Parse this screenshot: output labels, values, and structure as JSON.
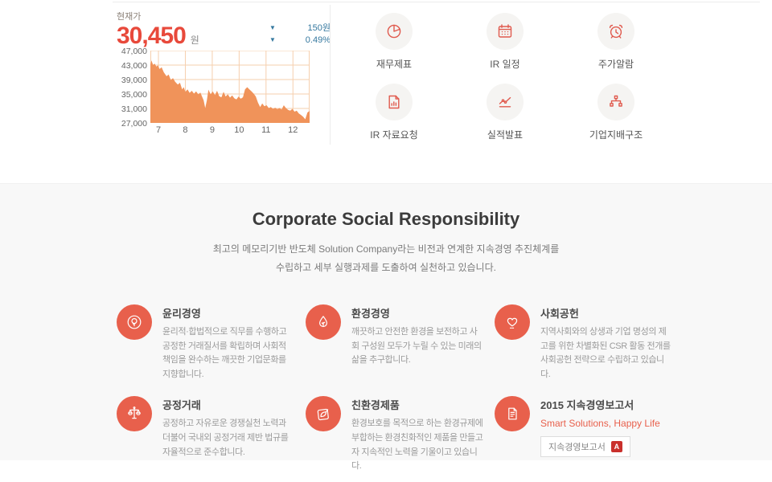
{
  "stock": {
    "label": "현재가",
    "price": "30,450",
    "currency": "원",
    "change_amount": "150원",
    "change_percent": "0.49%",
    "direction": "down",
    "down_triangle": "▼"
  },
  "chart_data": {
    "type": "area",
    "title": "",
    "xlabel": "",
    "ylabel": "",
    "xlim": [
      6.7,
      12.62
    ],
    "ylim": [
      27000,
      47000
    ],
    "grid": true,
    "fill_color": "#f0935a",
    "grid_color": "#f6cfae",
    "xticks": [
      "7",
      "8",
      "9",
      "10",
      "11",
      "12"
    ],
    "xtick_values": [
      7,
      8,
      9,
      10,
      11,
      12
    ],
    "yticks": [
      "47,000",
      "43,000",
      "39,000",
      "35,000",
      "31,000",
      "27,000"
    ],
    "ytick_values": [
      47000,
      43000,
      39000,
      35000,
      31000,
      27000
    ],
    "x": [
      6.7,
      6.74,
      6.8,
      6.86,
      6.92,
      6.98,
      7.04,
      7.12,
      7.2,
      7.3,
      7.38,
      7.46,
      7.54,
      7.62,
      7.72,
      7.8,
      7.88,
      7.94,
      8.0,
      8.08,
      8.16,
      8.24,
      8.32,
      8.4,
      8.48,
      8.56,
      8.62,
      8.68,
      8.74,
      8.8,
      8.86,
      8.94,
      9.02,
      9.1,
      9.18,
      9.26,
      9.34,
      9.42,
      9.5,
      9.58,
      9.66,
      9.74,
      9.82,
      9.9,
      9.98,
      10.06,
      10.14,
      10.22,
      10.3,
      10.38,
      10.46,
      10.54,
      10.62,
      10.7,
      10.78,
      10.86,
      10.94,
      11.02,
      11.1,
      11.18,
      11.26,
      11.34,
      11.42,
      11.5,
      11.58,
      11.66,
      11.74,
      11.82,
      11.9,
      11.98,
      12.06,
      12.14,
      12.22,
      12.3,
      12.38,
      12.46,
      12.54,
      12.62
    ],
    "values": [
      43200,
      44300,
      43100,
      43400,
      42600,
      42900,
      41900,
      42400,
      41000,
      39900,
      40400,
      38900,
      39400,
      38400,
      37600,
      38100,
      36300,
      36900,
      35600,
      36300,
      35300,
      35900,
      35100,
      35700,
      34900,
      35400,
      34300,
      33300,
      31100,
      33200,
      36200,
      34900,
      35700,
      34700,
      35900,
      34400,
      34100,
      35600,
      34300,
      34900,
      34000,
      34600,
      33800,
      33500,
      34300,
      33700,
      34100,
      36300,
      36900,
      36300,
      35700,
      35100,
      34300,
      32600,
      31400,
      32400,
      31600,
      31900,
      31100,
      31400,
      30900,
      31200,
      30800,
      31100,
      30700,
      31900,
      31100,
      30600,
      30400,
      30900,
      30100,
      30400,
      29600,
      29200,
      28700,
      28000,
      29900,
      30300
    ]
  },
  "quick_links": {
    "items": [
      {
        "label": "재무제표",
        "icon": "pie-chart-icon"
      },
      {
        "label": "IR 일정",
        "icon": "calendar-icon"
      },
      {
        "label": "주가알람",
        "icon": "alarm-clock-icon"
      },
      {
        "label": "IR 자료요청",
        "icon": "document-chart-icon"
      },
      {
        "label": "실적발표",
        "icon": "line-chart-icon"
      },
      {
        "label": "기업지배구조",
        "icon": "org-chart-icon"
      }
    ]
  },
  "csr": {
    "heading": "Corporate Social Responsibility",
    "subtitle_line1": "최고의 메모리기반 반도체 Solution Company라는 비전과 연계한 지속경영 추진체계를",
    "subtitle_line2": "수립하고 세부 실행과제를 도출하여 실천하고 있습니다.",
    "items": [
      {
        "title": "윤리경영",
        "body": "윤리적·합법적으로 직무를 수행하고 공정한 거래질서를 확립하며 사회적 책임을 완수하는 깨끗한 기업문화를 지향합니다.",
        "icon": "tree-icon"
      },
      {
        "title": "환경경영",
        "body": "깨끗하고 안전한 환경을 보전하고 사회 구성원 모두가 누릴 수 있는 미래의 삶을 추구합니다.",
        "icon": "eco-drop-icon"
      },
      {
        "title": "사회공헌",
        "body": "지역사회와의 상생과 기업 명성의 제고를 위한 차별화된 CSR 활동 전개를 사회공헌 전략으로 수립하고 있습니다.",
        "icon": "heart-icon"
      },
      {
        "title": "공정거래",
        "body": "공정하고 자유로운 경쟁실천 노력과 더불어 국내외 공정거래 제반 법규를 자율적으로 준수합니다.",
        "icon": "scales-icon"
      },
      {
        "title": "친환경제품",
        "body": "환경보호를 목적으로 하는 환경규제에 부합하는 환경친화적인 제품을 만들고자 지속적인 노력을 기울이고 있습니다.",
        "icon": "leaf-document-icon"
      },
      {
        "title": "2015 지속경영보고서",
        "slogan": "Smart Solutions, Happy Life",
        "button_label": "지속경영보고서",
        "pdf_glyph": "A",
        "icon": "report-icon"
      }
    ]
  },
  "colors": {
    "price_red": "#e8493b",
    "change_blue": "#35789f",
    "chart_fill": "#f0935a",
    "chart_grid": "#f6cfae",
    "quick_icon_red": "#e05a4e",
    "csr_circle": "#e8604c",
    "csr_slogan": "#e8604c",
    "pdf_red": "#c9302c",
    "section_bg": "#f8f8f8"
  }
}
